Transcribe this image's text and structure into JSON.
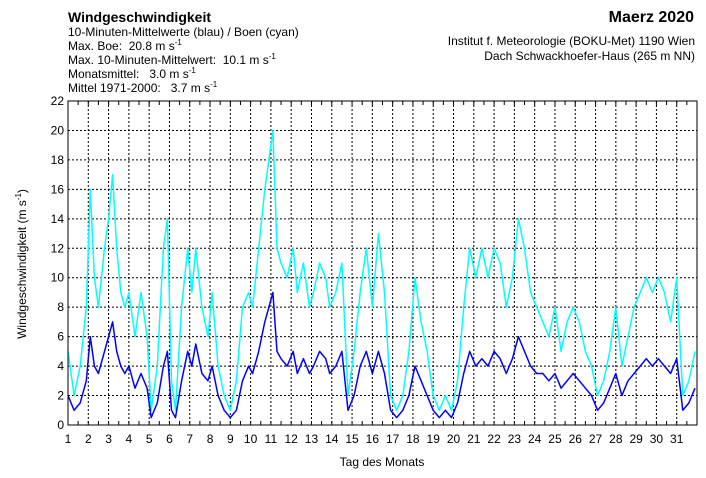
{
  "header": {
    "title": "Windgeschwindigkeit",
    "subtitle": "10-Minuten-Mittelwerte (blau) / Boen (cyan)",
    "max_boe_label": "Max. Boe:",
    "max_boe_value": "20.8 m s",
    "max_mean_label": "Max. 10-Minuten-Mittelwert:",
    "max_mean_value": "10.1 m s",
    "monthly_mean_label": "Monatsmittel:",
    "monthly_mean_value": "3.0 m s",
    "climate_mean_label": "Mittel 1971-2000:",
    "climate_mean_value": "3.7 m s",
    "unit_exponent": "-1",
    "month": "Maerz 2020",
    "institute": "Institut f. Meteorologie (BOKU-Met) 1190 Wien",
    "station": "Dach Schwackhoefer-Haus (265 m NN)"
  },
  "chart_data": {
    "type": "line",
    "title": "Windgeschwindigkeit",
    "xlabel": "Tag des Monats",
    "ylabel": "Windgeschwindigkeit (m s",
    "ylabel_exponent": "-1",
    "ylabel_close": ")",
    "xlim": [
      1,
      32
    ],
    "ylim": [
      0,
      22
    ],
    "x_ticks": [
      "1",
      "2",
      "3",
      "4",
      "5",
      "6",
      "7",
      "8",
      "9",
      "10",
      "11",
      "12",
      "13",
      "14",
      "15",
      "16",
      "17",
      "18",
      "19",
      "20",
      "21",
      "22",
      "23",
      "24",
      "25",
      "26",
      "27",
      "28",
      "29",
      "30",
      "31"
    ],
    "y_ticks": [
      "0",
      "2",
      "4",
      "6",
      "8",
      "10",
      "12",
      "14",
      "16",
      "18",
      "20",
      "22"
    ],
    "grid": true,
    "colors": {
      "gusts": "#00ffff",
      "mean": "#0000ff"
    },
    "series": [
      {
        "key": "gusts",
        "x": [
          1.0,
          1.3,
          1.6,
          1.9,
          2.1,
          2.3,
          2.5,
          2.8,
          3.0,
          3.2,
          3.4,
          3.6,
          3.8,
          4.0,
          4.3,
          4.6,
          4.9,
          5.1,
          5.4,
          5.7,
          5.9,
          6.1,
          6.3,
          6.6,
          6.9,
          7.1,
          7.3,
          7.6,
          7.9,
          8.1,
          8.4,
          8.7,
          9.0,
          9.3,
          9.6,
          9.9,
          10.1,
          10.4,
          10.7,
          10.9,
          11.1,
          11.3,
          11.5,
          11.8,
          12.1,
          12.3,
          12.6,
          12.9,
          13.1,
          13.4,
          13.7,
          13.9,
          14.2,
          14.5,
          14.8,
          15.1,
          15.4,
          15.7,
          16.0,
          16.3,
          16.6,
          16.9,
          17.2,
          17.5,
          17.8,
          18.1,
          18.4,
          18.7,
          19.0,
          19.3,
          19.6,
          19.9,
          20.2,
          20.5,
          20.8,
          21.1,
          21.4,
          21.7,
          22.0,
          22.3,
          22.6,
          22.9,
          23.2,
          23.5,
          23.8,
          24.1,
          24.4,
          24.7,
          25.0,
          25.3,
          25.6,
          25.9,
          26.2,
          26.5,
          26.8,
          27.1,
          27.4,
          27.7,
          28.0,
          28.3,
          28.6,
          28.9,
          29.2,
          29.5,
          29.8,
          30.1,
          30.4,
          30.7,
          31.0,
          31.3,
          31.6,
          31.9
        ],
        "values": [
          5.0,
          2.0,
          4.0,
          8.0,
          16.0,
          10.0,
          8.0,
          12.0,
          14.0,
          17.0,
          12.0,
          9.0,
          8.0,
          9.0,
          6.0,
          9.0,
          6.0,
          1.0,
          4.0,
          12.0,
          14.0,
          3.0,
          1.0,
          8.0,
          12.0,
          9.0,
          12.0,
          8.0,
          6.0,
          9.0,
          4.0,
          2.0,
          1.0,
          3.0,
          8.0,
          9.0,
          8.0,
          12.0,
          16.0,
          18.0,
          20.0,
          12.0,
          11.0,
          10.0,
          12.0,
          9.0,
          11.0,
          8.0,
          9.0,
          11.0,
          10.0,
          8.0,
          9.0,
          11.0,
          2.0,
          5.0,
          9.0,
          12.0,
          8.0,
          13.0,
          9.0,
          2.0,
          1.0,
          2.0,
          5.0,
          10.0,
          7.0,
          5.0,
          2.0,
          1.0,
          2.0,
          1.0,
          3.0,
          8.0,
          12.0,
          10.0,
          12.0,
          10.0,
          12.0,
          11.0,
          8.0,
          10.0,
          14.0,
          12.0,
          9.0,
          8.0,
          7.0,
          6.0,
          8.0,
          5.0,
          7.0,
          8.0,
          7.0,
          5.0,
          4.0,
          2.0,
          3.0,
          5.0,
          8.0,
          4.0,
          6.0,
          8.0,
          9.0,
          10.0,
          9.0,
          10.0,
          9.0,
          7.0,
          10.0,
          2.0,
          3.0,
          5.0
        ]
      },
      {
        "key": "mean",
        "x": [
          1.0,
          1.3,
          1.6,
          1.9,
          2.1,
          2.3,
          2.5,
          2.8,
          3.0,
          3.2,
          3.4,
          3.6,
          3.8,
          4.0,
          4.3,
          4.6,
          4.9,
          5.1,
          5.4,
          5.7,
          5.9,
          6.1,
          6.3,
          6.6,
          6.9,
          7.1,
          7.3,
          7.6,
          7.9,
          8.1,
          8.4,
          8.7,
          9.0,
          9.3,
          9.6,
          9.9,
          10.1,
          10.4,
          10.7,
          10.9,
          11.1,
          11.3,
          11.5,
          11.8,
          12.1,
          12.3,
          12.6,
          12.9,
          13.1,
          13.4,
          13.7,
          13.9,
          14.2,
          14.5,
          14.8,
          15.1,
          15.4,
          15.7,
          16.0,
          16.3,
          16.6,
          16.9,
          17.2,
          17.5,
          17.8,
          18.1,
          18.4,
          18.7,
          19.0,
          19.3,
          19.6,
          19.9,
          20.2,
          20.5,
          20.8,
          21.1,
          21.4,
          21.7,
          22.0,
          22.3,
          22.6,
          22.9,
          23.2,
          23.5,
          23.8,
          24.1,
          24.4,
          24.7,
          25.0,
          25.3,
          25.6,
          25.9,
          26.2,
          26.5,
          26.8,
          27.1,
          27.4,
          27.7,
          28.0,
          28.3,
          28.6,
          28.9,
          29.2,
          29.5,
          29.8,
          30.1,
          30.4,
          30.7,
          31.0,
          31.3,
          31.6,
          31.9
        ],
        "values": [
          2.0,
          1.0,
          1.5,
          3.0,
          6.0,
          4.0,
          3.5,
          5.0,
          6.0,
          7.0,
          5.0,
          4.0,
          3.5,
          4.0,
          2.5,
          3.5,
          2.5,
          0.5,
          1.5,
          4.0,
          5.0,
          1.0,
          0.5,
          3.0,
          5.0,
          4.0,
          5.5,
          3.5,
          3.0,
          4.0,
          2.0,
          1.0,
          0.5,
          1.0,
          3.0,
          4.0,
          3.5,
          5.0,
          7.0,
          8.0,
          9.0,
          5.0,
          4.5,
          4.0,
          5.0,
          3.5,
          4.5,
          3.5,
          4.0,
          5.0,
          4.5,
          3.5,
          4.0,
          5.0,
          1.0,
          2.0,
          4.0,
          5.0,
          3.5,
          5.0,
          3.5,
          1.0,
          0.5,
          1.0,
          2.0,
          4.0,
          3.0,
          2.0,
          1.0,
          0.5,
          1.0,
          0.5,
          1.5,
          3.5,
          5.0,
          4.0,
          4.5,
          4.0,
          5.0,
          4.5,
          3.5,
          4.5,
          6.0,
          5.0,
          4.0,
          3.5,
          3.5,
          3.0,
          3.5,
          2.5,
          3.0,
          3.5,
          3.0,
          2.5,
          2.0,
          1.0,
          1.5,
          2.5,
          3.5,
          2.0,
          3.0,
          3.5,
          4.0,
          4.5,
          4.0,
          4.5,
          4.0,
          3.5,
          4.5,
          1.0,
          1.5,
          2.5
        ]
      }
    ]
  }
}
